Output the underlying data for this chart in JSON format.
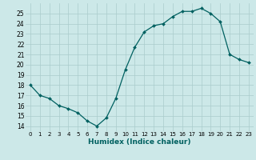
{
  "x": [
    0,
    1,
    2,
    3,
    4,
    5,
    6,
    7,
    8,
    9,
    10,
    11,
    12,
    13,
    14,
    15,
    16,
    17,
    18,
    19,
    20,
    21,
    22,
    23
  ],
  "y": [
    18.0,
    17.0,
    16.7,
    16.0,
    15.7,
    15.3,
    14.5,
    14.0,
    14.8,
    16.7,
    19.5,
    21.7,
    23.2,
    23.8,
    24.0,
    24.7,
    25.2,
    25.2,
    25.5,
    25.0,
    24.2,
    21.0,
    20.5,
    20.2
  ],
  "xlabel": "Humidex (Indice chaleur)",
  "ylabel_ticks": [
    14,
    15,
    16,
    17,
    18,
    19,
    20,
    21,
    22,
    23,
    24,
    25
  ],
  "ylim": [
    13.5,
    26.0
  ],
  "xlim": [
    -0.5,
    23.5
  ],
  "bg_color": "#cce8e8",
  "grid_color": "#aacccc",
  "line_color": "#006060",
  "marker_color": "#006060"
}
